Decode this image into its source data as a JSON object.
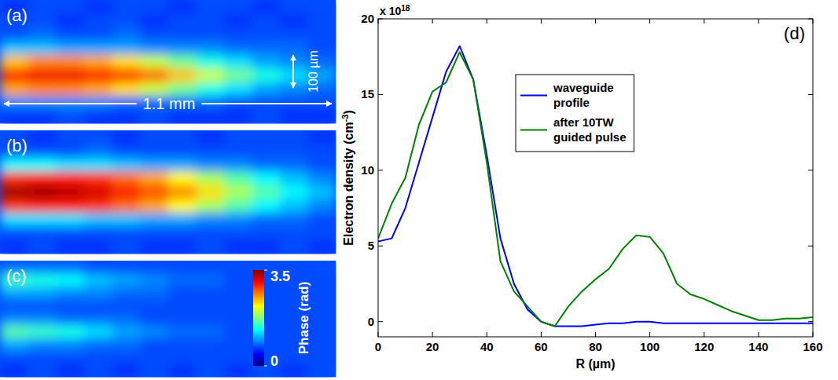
{
  "chart_data": [
    {
      "type": "heatmap",
      "label": "(a)",
      "color_range": [
        0,
        3.5
      ],
      "annotations": [
        "1.1 mm",
        "100 µm"
      ],
      "cells": [
        [
          0.6,
          0.7,
          0.7,
          0.6,
          0.7,
          0.7,
          0.6,
          0.7,
          0.7,
          0.6,
          0.7,
          0.7
        ],
        [
          0.7,
          0.7,
          0.6,
          0.7,
          0.7,
          0.6,
          0.7,
          0.7,
          0.6,
          0.7,
          0.6,
          0.7
        ],
        [
          0.7,
          0.8,
          0.7,
          0.7,
          0.8,
          0.7,
          0.7,
          0.7,
          0.7,
          0.7,
          0.7,
          0.7
        ],
        [
          1.1,
          1.1,
          1.0,
          1.0,
          1.0,
          0.9,
          0.9,
          0.9,
          0.8,
          0.8,
          0.8,
          0.7
        ],
        [
          2.4,
          2.6,
          2.6,
          2.5,
          2.3,
          2.0,
          1.7,
          1.4,
          1.2,
          1.0,
          0.9,
          0.8
        ],
        [
          3.0,
          3.1,
          3.1,
          3.0,
          2.9,
          2.7,
          2.4,
          2.0,
          1.7,
          1.4,
          1.2,
          1.0
        ],
        [
          2.5,
          2.6,
          2.6,
          2.5,
          2.3,
          2.0,
          1.7,
          1.4,
          1.2,
          1.0,
          0.9,
          0.8
        ],
        [
          0.9,
          0.9,
          0.9,
          0.9,
          0.8,
          0.8,
          0.8,
          0.8,
          0.7,
          0.7,
          0.7,
          0.7
        ],
        [
          0.6,
          0.6,
          0.7,
          0.6,
          0.6,
          0.7,
          0.6,
          0.6,
          0.6,
          0.7,
          0.6,
          0.6
        ]
      ]
    },
    {
      "type": "heatmap",
      "label": "(b)",
      "color_range": [
        0,
        3.5
      ],
      "cells": [
        [
          0.7,
          0.6,
          0.7,
          0.7,
          0.6,
          0.7,
          0.7,
          0.6,
          0.7,
          0.7,
          0.7,
          0.6
        ],
        [
          0.7,
          0.7,
          0.7,
          0.8,
          0.7,
          0.7,
          0.7,
          0.7,
          0.7,
          0.7,
          0.7,
          0.7
        ],
        [
          1.3,
          1.3,
          1.2,
          1.2,
          1.1,
          1.0,
          1.0,
          0.9,
          0.9,
          0.8,
          0.8,
          0.7
        ],
        [
          2.9,
          3.0,
          3.0,
          2.9,
          2.7,
          2.5,
          2.2,
          1.9,
          1.6,
          1.3,
          1.1,
          0.9
        ],
        [
          3.4,
          3.4,
          3.3,
          3.2,
          3.0,
          2.8,
          2.6,
          2.3,
          1.9,
          1.6,
          1.3,
          1.1
        ],
        [
          2.9,
          3.0,
          3.0,
          2.9,
          2.7,
          2.5,
          2.2,
          1.9,
          1.6,
          1.3,
          1.1,
          0.9
        ],
        [
          1.2,
          1.2,
          1.2,
          1.1,
          1.1,
          1.0,
          1.0,
          0.9,
          0.9,
          0.8,
          0.8,
          0.7
        ],
        [
          0.7,
          0.7,
          0.7,
          0.7,
          0.7,
          0.7,
          0.7,
          0.7,
          0.7,
          0.7,
          0.7,
          0.7
        ],
        [
          0.6,
          0.7,
          0.6,
          0.6,
          0.7,
          0.6,
          0.6,
          0.7,
          0.6,
          0.6,
          0.7,
          0.6
        ]
      ]
    },
    {
      "type": "heatmap",
      "label": "(c)",
      "color_range": [
        0,
        3.5
      ],
      "color_ticks": [
        0,
        3.5
      ],
      "colorbar_label": "Phase (rad)",
      "cells": [
        [
          0.8,
          0.8,
          0.8,
          0.7,
          0.7,
          0.7,
          0.7,
          0.7,
          0.7,
          0.7,
          0.7,
          0.7
        ],
        [
          1.5,
          1.4,
          1.3,
          1.1,
          1.0,
          0.9,
          0.8,
          0.8,
          0.7,
          0.7,
          0.7,
          0.7
        ],
        [
          1.0,
          1.0,
          0.9,
          0.9,
          0.8,
          0.8,
          0.7,
          0.7,
          0.7,
          0.7,
          0.7,
          0.7
        ],
        [
          0.7,
          0.7,
          0.7,
          0.7,
          0.7,
          0.7,
          0.7,
          0.7,
          0.7,
          0.7,
          0.7,
          0.7
        ],
        [
          0.9,
          0.9,
          0.8,
          0.8,
          0.8,
          0.7,
          0.7,
          0.7,
          0.7,
          0.7,
          0.7,
          0.7
        ],
        [
          1.6,
          1.5,
          1.4,
          1.2,
          1.0,
          0.9,
          0.8,
          0.8,
          0.7,
          0.7,
          0.7,
          0.7
        ],
        [
          1.0,
          0.9,
          0.9,
          0.8,
          0.8,
          0.7,
          0.7,
          0.7,
          0.7,
          0.7,
          0.7,
          0.7
        ],
        [
          0.7,
          0.7,
          0.7,
          0.7,
          0.7,
          0.7,
          0.7,
          0.7,
          0.7,
          0.7,
          0.7,
          0.7
        ],
        [
          0.6,
          0.7,
          0.6,
          0.7,
          0.6,
          0.7,
          0.6,
          0.7,
          0.6,
          0.7,
          0.6,
          0.7
        ]
      ]
    },
    {
      "type": "line",
      "label": "(d)",
      "xlabel": "R (µm)",
      "ylabel": {
        "text": "Electron density (cm",
        "superscript": "-3",
        "suffix": ")"
      },
      "y_scale_label": {
        "text": "x 10",
        "superscript": "18"
      },
      "xlim": [
        0,
        160
      ],
      "ylim": [
        -1,
        20
      ],
      "xticks": [
        0,
        20,
        40,
        60,
        80,
        100,
        120,
        140,
        160
      ],
      "yticks": [
        0,
        5,
        10,
        15,
        20
      ],
      "grid": false,
      "legend": "top",
      "x": [
        0,
        5,
        10,
        15,
        20,
        25,
        30,
        35,
        40,
        45,
        50,
        55,
        60,
        65,
        70,
        75,
        80,
        85,
        90,
        95,
        100,
        105,
        110,
        115,
        120,
        125,
        130,
        135,
        140,
        145,
        150,
        155,
        160
      ],
      "series": [
        {
          "name": "waveguide profile",
          "color": "#0000ff",
          "values": [
            5.3,
            5.5,
            7.5,
            10.5,
            13.5,
            16.5,
            18.2,
            16,
            11,
            5.5,
            2.5,
            0.8,
            0,
            -0.3,
            -0.3,
            -0.3,
            -0.2,
            -0.1,
            -0.1,
            0,
            0,
            -0.1,
            -0.1,
            -0.1,
            -0.1,
            -0.1,
            -0.1,
            -0.1,
            -0.1,
            -0.1,
            -0.1,
            -0.1,
            -0.1
          ]
        },
        {
          "name": "after 10TW guided pulse",
          "color": "#008000",
          "values": [
            5.5,
            7.8,
            9.5,
            13,
            15.2,
            15.8,
            17.8,
            16,
            10.5,
            4,
            2,
            1,
            0,
            -0.3,
            1,
            2,
            2.8,
            3.5,
            4.8,
            5.7,
            5.6,
            4.5,
            2.5,
            1.8,
            1.5,
            1.1,
            0.7,
            0.4,
            0.1,
            0.1,
            0.2,
            0.2,
            0.3
          ]
        }
      ]
    }
  ]
}
